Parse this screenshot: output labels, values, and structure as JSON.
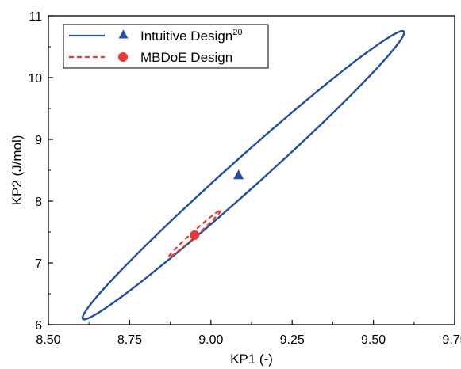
{
  "chart_data": {
    "type": "scatter",
    "xlabel": "KP1 (-)",
    "ylabel": "KP2 (J/mol)",
    "xlim": [
      8.5,
      9.75
    ],
    "ylim": [
      6,
      11
    ],
    "xticks": [
      8.5,
      8.75,
      9.0,
      9.25,
      9.5,
      9.75
    ],
    "xtick_labels": [
      "8.50",
      "8.75",
      "9.00",
      "9.25",
      "9.50",
      "9.75"
    ],
    "yticks": [
      6,
      7,
      8,
      9,
      10,
      11
    ],
    "ytick_labels": [
      "6",
      "7",
      "8",
      "9",
      "10",
      "11"
    ],
    "grid": false,
    "legend_position": "top-left",
    "series": [
      {
        "name": "Intuitive Design",
        "name_superscript": "20",
        "marker": "triangle",
        "color": "#1f4ea3",
        "line_style": "solid",
        "point": {
          "x": 9.085,
          "y": 8.42
        },
        "confidence_ellipse": {
          "center_x": 9.1,
          "center_y": 8.42,
          "extent_x": [
            8.59,
            9.58
          ],
          "extent_y": [
            6.08,
            10.75
          ]
        }
      },
      {
        "name": "MBDoE Design",
        "marker": "circle",
        "color": "#e53935",
        "line_style": "dashed",
        "point": {
          "x": 8.95,
          "y": 7.45
        },
        "confidence_ellipse": {
          "center_x": 8.95,
          "center_y": 7.47,
          "extent_x": [
            8.87,
            9.03
          ],
          "extent_y": [
            7.09,
            7.85
          ]
        }
      }
    ]
  }
}
